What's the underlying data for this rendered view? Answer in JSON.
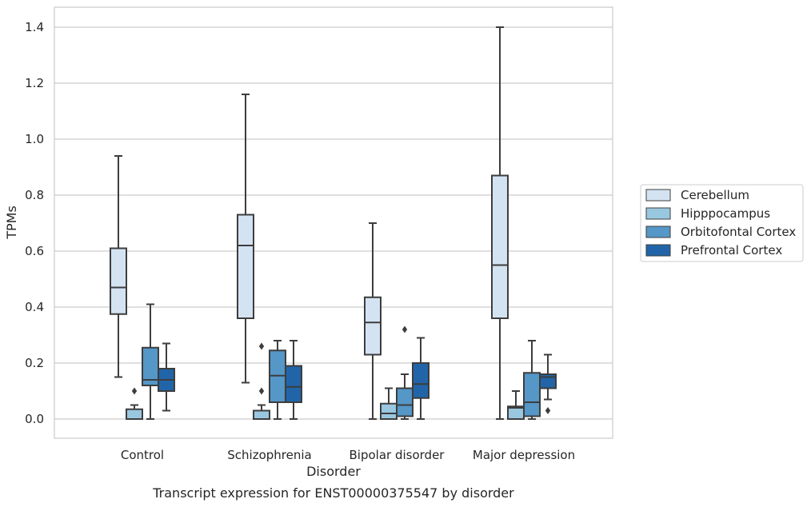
{
  "chart_data": {
    "type": "box",
    "xlabel": "Disorder",
    "ylabel": "TPMs",
    "caption": "Transcript expression for ENST00000375547 by disorder",
    "ylim": [
      -0.068,
      1.47
    ],
    "yticks": [
      0.0,
      0.2,
      0.4,
      0.6,
      0.8,
      1.0,
      1.2,
      1.4
    ],
    "ytick_labels": [
      "0.0",
      "0.2",
      "0.4",
      "0.6",
      "0.8",
      "1.0",
      "1.2",
      "1.4"
    ],
    "grid": "horizontal",
    "legend_position": "right",
    "categories": [
      "Control",
      "Schizophrenia",
      "Bipolar disorder",
      "Major depression"
    ],
    "series": [
      {
        "name": "Cerebellum",
        "color": "#d4e3f2",
        "boxes": [
          {
            "whislo": 0.15,
            "q1": 0.375,
            "median": 0.47,
            "q3": 0.61,
            "whishi": 0.94,
            "fliers": []
          },
          {
            "whislo": 0.13,
            "q1": 0.36,
            "median": 0.62,
            "q3": 0.73,
            "whishi": 1.16,
            "fliers": []
          },
          {
            "whislo": 0.0,
            "q1": 0.23,
            "median": 0.345,
            "q3": 0.435,
            "whishi": 0.7,
            "fliers": []
          },
          {
            "whislo": 0.0,
            "q1": 0.36,
            "median": 0.55,
            "q3": 0.87,
            "whishi": 1.4,
            "fliers": []
          }
        ]
      },
      {
        "name": "Hipppocampus",
        "color": "#9ac7e0",
        "boxes": [
          {
            "whislo": 0.0,
            "q1": 0.0,
            "median": 0.0,
            "q3": 0.035,
            "whishi": 0.05,
            "fliers": [
              0.1
            ]
          },
          {
            "whislo": 0.0,
            "q1": 0.0,
            "median": 0.0,
            "q3": 0.03,
            "whishi": 0.05,
            "fliers": [
              0.1,
              0.26
            ]
          },
          {
            "whislo": 0.0,
            "q1": 0.0,
            "median": 0.02,
            "q3": 0.055,
            "whishi": 0.11,
            "fliers": []
          },
          {
            "whislo": 0.0,
            "q1": 0.0,
            "median": 0.04,
            "q3": 0.045,
            "whishi": 0.1,
            "fliers": []
          }
        ]
      },
      {
        "name": "Orbitofontal Cortex",
        "color": "#5597c7",
        "boxes": [
          {
            "whislo": 0.0,
            "q1": 0.12,
            "median": 0.14,
            "q3": 0.255,
            "whishi": 0.41,
            "fliers": []
          },
          {
            "whislo": 0.0,
            "q1": 0.06,
            "median": 0.155,
            "q3": 0.245,
            "whishi": 0.28,
            "fliers": []
          },
          {
            "whislo": 0.0,
            "q1": 0.01,
            "median": 0.05,
            "q3": 0.11,
            "whishi": 0.16,
            "fliers": [
              0.32
            ]
          },
          {
            "whislo": 0.0,
            "q1": 0.01,
            "median": 0.06,
            "q3": 0.165,
            "whishi": 0.28,
            "fliers": []
          }
        ]
      },
      {
        "name": "Prefrontal Cortex",
        "color": "#2165a8",
        "boxes": [
          {
            "whislo": 0.03,
            "q1": 0.1,
            "median": 0.14,
            "q3": 0.18,
            "whishi": 0.27,
            "fliers": []
          },
          {
            "whislo": 0.0,
            "q1": 0.06,
            "median": 0.115,
            "q3": 0.19,
            "whishi": 0.28,
            "fliers": []
          },
          {
            "whislo": 0.0,
            "q1": 0.075,
            "median": 0.125,
            "q3": 0.2,
            "whishi": 0.29,
            "fliers": []
          },
          {
            "whislo": 0.07,
            "q1": 0.11,
            "median": 0.15,
            "q3": 0.16,
            "whishi": 0.23,
            "fliers": [
              0.03
            ]
          }
        ]
      }
    ]
  }
}
